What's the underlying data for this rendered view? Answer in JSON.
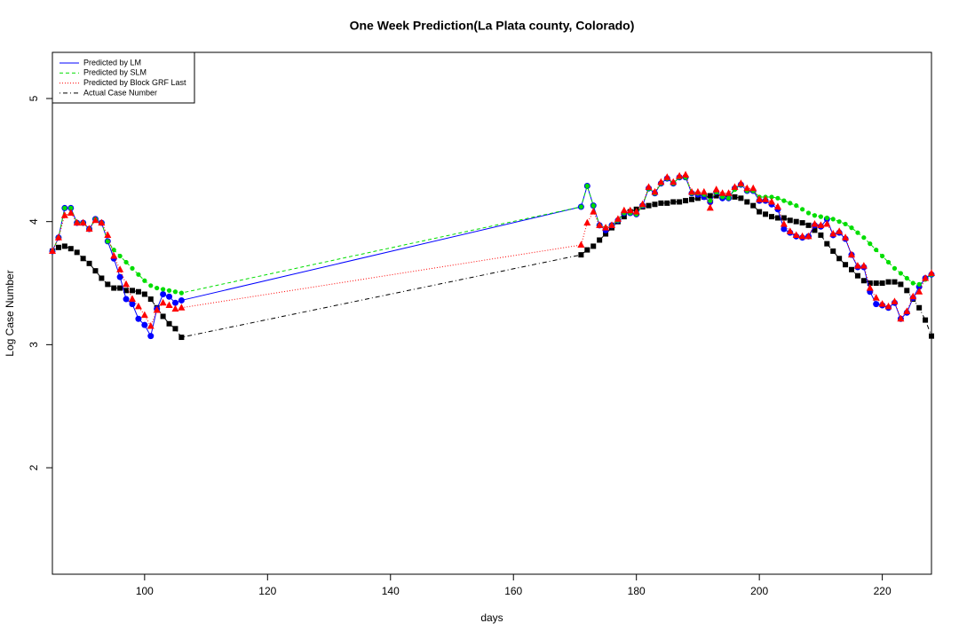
{
  "chart_data": {
    "type": "line",
    "title": "One Week Prediction(La Plata county, Colorado)",
    "xlabel": "days",
    "ylabel": "Log Case Number",
    "xlim": [
      85,
      228
    ],
    "ylim": [
      1.135,
      5.375
    ],
    "xticks": [
      100,
      120,
      140,
      160,
      180,
      200,
      220
    ],
    "yticks": [
      2,
      3,
      4,
      5
    ],
    "legend": "top-left",
    "x": [
      85,
      86,
      87,
      88,
      89,
      90,
      91,
      92,
      93,
      94,
      95,
      96,
      97,
      98,
      99,
      100,
      101,
      102,
      103,
      104,
      105,
      106,
      171,
      172,
      173,
      174,
      175,
      176,
      177,
      178,
      179,
      180,
      181,
      182,
      183,
      184,
      185,
      186,
      187,
      188,
      189,
      190,
      191,
      192,
      193,
      194,
      195,
      196,
      197,
      198,
      199,
      200,
      201,
      202,
      203,
      204,
      205,
      206,
      207,
      208,
      209,
      210,
      211,
      212,
      213,
      214,
      215,
      216,
      217,
      218,
      219,
      220,
      221,
      222,
      223,
      224,
      225,
      226,
      227,
      228
    ],
    "series": [
      {
        "name": "Predicted by LM",
        "color": "#0000ff",
        "dash": "solid",
        "marker": "circle",
        "values": [
          3.76,
          3.87,
          4.11,
          4.11,
          3.99,
          3.99,
          3.94,
          4.02,
          3.99,
          3.84,
          3.7,
          3.55,
          3.37,
          3.33,
          3.21,
          3.16,
          3.07,
          3.29,
          3.41,
          3.39,
          3.34,
          3.36,
          4.12,
          4.29,
          4.13,
          3.97,
          3.93,
          3.97,
          4.01,
          4.07,
          4.07,
          4.06,
          4.13,
          4.27,
          4.23,
          4.31,
          4.35,
          4.31,
          4.36,
          4.36,
          4.23,
          4.22,
          4.2,
          4.16,
          4.24,
          4.19,
          4.19,
          4.27,
          4.3,
          4.25,
          4.25,
          4.17,
          4.17,
          4.14,
          4.1,
          3.94,
          3.91,
          3.88,
          3.87,
          3.88,
          3.97,
          3.96,
          4.02,
          3.89,
          3.91,
          3.86,
          3.73,
          3.63,
          3.63,
          3.43,
          3.33,
          3.32,
          3.3,
          3.34,
          3.21,
          3.26,
          3.38,
          3.47,
          3.54,
          3.57
        ]
      },
      {
        "name": "Predicted by SLM",
        "color": "#00dd00",
        "dash": "dashed",
        "marker": "dot",
        "values": [
          3.76,
          3.87,
          4.11,
          4.11,
          3.99,
          3.99,
          3.94,
          4.02,
          3.99,
          3.84,
          3.77,
          3.72,
          3.67,
          3.62,
          3.57,
          3.52,
          3.48,
          3.46,
          3.45,
          3.44,
          3.43,
          3.42,
          4.12,
          4.29,
          4.13,
          3.97,
          3.95,
          3.97,
          4.01,
          4.07,
          4.07,
          4.06,
          4.13,
          4.27,
          4.23,
          4.31,
          4.35,
          4.31,
          4.36,
          4.36,
          4.23,
          4.23,
          4.22,
          4.17,
          4.24,
          4.2,
          4.19,
          4.26,
          4.3,
          4.25,
          4.25,
          4.2,
          4.2,
          4.2,
          4.19,
          4.17,
          4.15,
          4.13,
          4.1,
          4.07,
          4.05,
          4.04,
          4.03,
          4.02,
          4.0,
          3.98,
          3.95,
          3.91,
          3.87,
          3.82,
          3.77,
          3.72,
          3.67,
          3.62,
          3.58,
          3.54,
          3.5,
          3.49,
          3.53,
          3.57
        ]
      },
      {
        "name": "Predicted by Block GRF Last",
        "color": "#ff0000",
        "dash": "dotted",
        "marker": "triangle",
        "values": [
          3.76,
          3.87,
          4.05,
          4.07,
          3.99,
          3.99,
          3.94,
          4.01,
          3.99,
          3.89,
          3.72,
          3.61,
          3.49,
          3.37,
          3.31,
          3.24,
          3.15,
          3.28,
          3.34,
          3.32,
          3.29,
          3.3,
          3.81,
          3.99,
          4.08,
          3.97,
          3.95,
          3.97,
          4.02,
          4.09,
          4.09,
          4.08,
          4.14,
          4.28,
          4.24,
          4.32,
          4.36,
          4.32,
          4.37,
          4.38,
          4.24,
          4.24,
          4.24,
          4.11,
          4.26,
          4.23,
          4.23,
          4.28,
          4.31,
          4.27,
          4.27,
          4.18,
          4.18,
          4.16,
          4.12,
          3.98,
          3.92,
          3.89,
          3.88,
          3.88,
          3.98,
          3.97,
          3.98,
          3.9,
          3.92,
          3.87,
          3.73,
          3.64,
          3.64,
          3.46,
          3.38,
          3.33,
          3.31,
          3.35,
          3.21,
          3.27,
          3.39,
          3.43,
          3.54,
          3.58
        ]
      },
      {
        "name": "Actual Case Number",
        "color": "#000000",
        "dash": "dotdash",
        "marker": "square",
        "values": [
          3.76,
          3.79,
          3.8,
          3.78,
          3.75,
          3.7,
          3.66,
          3.6,
          3.54,
          3.49,
          3.46,
          3.46,
          3.44,
          3.44,
          3.43,
          3.41,
          3.37,
          3.3,
          3.23,
          3.17,
          3.13,
          3.06,
          3.73,
          3.77,
          3.8,
          3.85,
          3.9,
          3.95,
          4.0,
          4.04,
          4.08,
          4.1,
          4.12,
          4.13,
          4.14,
          4.15,
          4.15,
          4.16,
          4.16,
          4.17,
          4.18,
          4.19,
          4.2,
          4.21,
          4.21,
          4.21,
          4.2,
          4.2,
          4.19,
          4.16,
          4.13,
          4.08,
          4.06,
          4.04,
          4.03,
          4.03,
          4.01,
          4.0,
          3.99,
          3.97,
          3.93,
          3.89,
          3.82,
          3.76,
          3.7,
          3.65,
          3.61,
          3.56,
          3.52,
          3.5,
          3.5,
          3.5,
          3.51,
          3.51,
          3.49,
          3.44,
          3.37,
          3.3,
          3.2,
          3.07
        ]
      }
    ]
  }
}
